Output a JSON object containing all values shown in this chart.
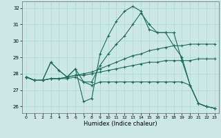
{
  "xlabel": "Humidex (Indice chaleur)",
  "background_color": "#cce8e4",
  "grid_color": "#aad8d4",
  "line_color": "#1a6b5e",
  "xlim": [
    -0.5,
    23.5
  ],
  "ylim": [
    25.6,
    32.4
  ],
  "yticks": [
    26,
    27,
    28,
    29,
    30,
    31,
    32
  ],
  "xticks": [
    0,
    1,
    2,
    3,
    4,
    5,
    6,
    7,
    8,
    9,
    10,
    11,
    12,
    13,
    14,
    15,
    16,
    17,
    18,
    19,
    20,
    21,
    22,
    23
  ],
  "lines": [
    [
      27.8,
      27.6,
      27.6,
      28.7,
      28.2,
      27.8,
      28.3,
      26.3,
      26.5,
      29.2,
      30.3,
      31.2,
      31.8,
      32.1,
      31.8,
      30.7,
      30.5,
      30.5,
      29.7,
      29.0,
      27.3,
      26.2,
      26.0,
      25.9
    ],
    [
      27.8,
      27.6,
      27.6,
      28.7,
      28.2,
      27.8,
      28.3,
      27.5,
      27.5,
      28.5,
      29.2,
      29.8,
      30.3,
      31.0,
      31.7,
      31.0,
      30.5,
      30.5,
      30.5,
      28.8,
      27.3,
      26.2,
      26.0,
      25.9
    ],
    [
      27.8,
      27.6,
      27.6,
      27.7,
      27.7,
      27.8,
      27.9,
      28.0,
      28.1,
      28.3,
      28.5,
      28.7,
      28.9,
      29.1,
      29.2,
      29.4,
      29.5,
      29.6,
      29.7,
      29.7,
      29.8,
      29.8,
      29.8,
      29.8
    ],
    [
      27.8,
      27.6,
      27.6,
      27.7,
      27.7,
      27.8,
      27.9,
      27.9,
      28.0,
      28.1,
      28.2,
      28.3,
      28.4,
      28.5,
      28.6,
      28.7,
      28.7,
      28.8,
      28.8,
      28.8,
      28.8,
      28.9,
      28.9,
      28.9
    ],
    [
      27.8,
      27.6,
      27.6,
      27.7,
      27.7,
      27.7,
      27.8,
      27.5,
      27.3,
      27.5,
      27.5,
      27.5,
      27.5,
      27.5,
      27.5,
      27.5,
      27.5,
      27.5,
      27.5,
      27.5,
      27.3,
      26.2,
      26.0,
      25.9
    ]
  ]
}
